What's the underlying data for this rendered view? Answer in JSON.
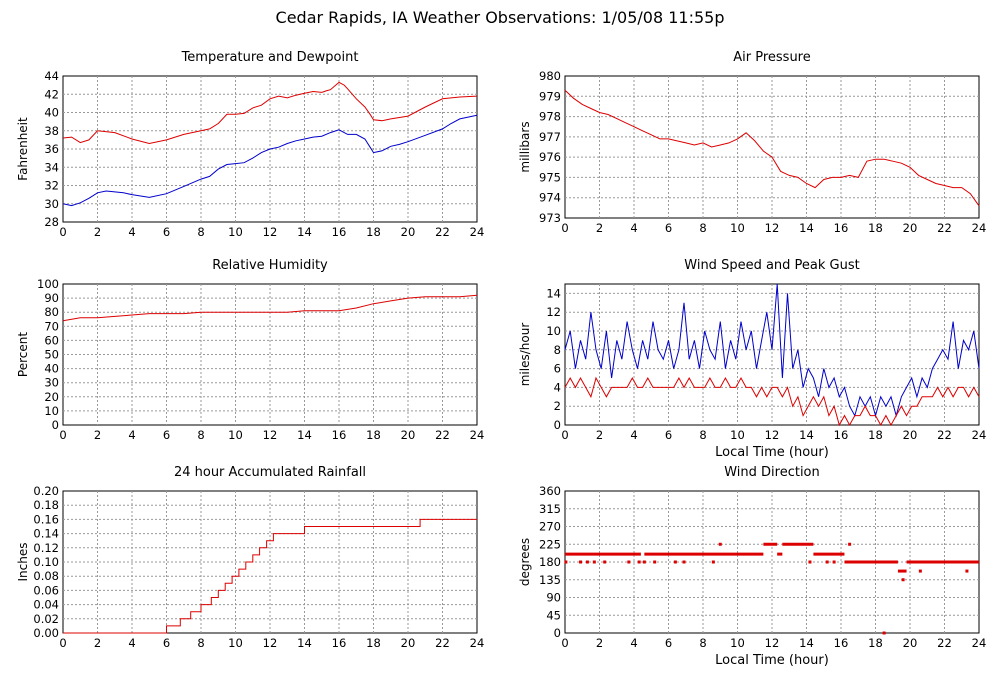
{
  "page": {
    "title": "Cedar Rapids, IA Weather Observations: 1/05/08 11:55p"
  },
  "colors": {
    "red": "#dd0000",
    "blue": "#0000cc",
    "grid": "#999999"
  },
  "chart_data": [
    {
      "id": "temp",
      "type": "line",
      "title": "Temperature and Dewpoint",
      "xlabel": "",
      "ylabel": "Fahrenheit",
      "xlim": [
        0,
        24
      ],
      "ylim": [
        28,
        44
      ],
      "grid": true,
      "xticks": [
        "0",
        "2",
        "4",
        "6",
        "8",
        "10",
        "12",
        "14",
        "16",
        "18",
        "20",
        "22",
        "24"
      ],
      "yticks": [
        "28",
        "30",
        "32",
        "34",
        "36",
        "38",
        "40",
        "42",
        "44"
      ],
      "ytick_values": [
        28,
        30,
        32,
        34,
        36,
        38,
        40,
        42,
        44
      ],
      "series": [
        {
          "color": "red",
          "x": [
            0,
            0.5,
            1,
            1.5,
            2,
            3,
            4,
            5,
            6,
            7,
            8,
            8.5,
            9,
            9.5,
            10,
            10.5,
            11,
            11.5,
            12,
            12.5,
            13,
            13.5,
            14,
            14.5,
            15,
            15.3,
            15.5,
            16,
            16.3,
            16.5,
            17,
            17.5,
            17.8,
            18,
            18.5,
            19,
            20,
            21,
            22,
            23,
            24
          ],
          "y": [
            37.2,
            37.3,
            36.7,
            37.0,
            38.0,
            37.8,
            37.1,
            36.6,
            37.0,
            37.6,
            38.0,
            38.2,
            38.8,
            39.8,
            39.8,
            39.9,
            40.5,
            40.8,
            41.5,
            41.8,
            41.6,
            41.9,
            42.1,
            42.3,
            42.2,
            42.4,
            42.5,
            43.3,
            43.0,
            42.6,
            41.5,
            40.6,
            39.8,
            39.2,
            39.1,
            39.3,
            39.6,
            40.6,
            41.5,
            41.7,
            41.8
          ]
        },
        {
          "color": "blue",
          "x": [
            0,
            0.5,
            1,
            1.5,
            2,
            2.5,
            3,
            3.5,
            4,
            5,
            6,
            7,
            8,
            8.5,
            9,
            9.5,
            10,
            10.5,
            11,
            11.5,
            12,
            12.5,
            13,
            13.5,
            14,
            14.5,
            15,
            15.5,
            16,
            16.5,
            17,
            17.5,
            17.8,
            18,
            18.5,
            19,
            19.5,
            20,
            21,
            22,
            22.5,
            23,
            24
          ],
          "y": [
            30.0,
            29.8,
            30.1,
            30.6,
            31.2,
            31.4,
            31.3,
            31.2,
            31.0,
            30.7,
            31.1,
            31.9,
            32.7,
            33.0,
            33.8,
            34.3,
            34.4,
            34.5,
            35.0,
            35.6,
            36.0,
            36.2,
            36.6,
            36.9,
            37.1,
            37.3,
            37.4,
            37.8,
            38.1,
            37.6,
            37.6,
            37.1,
            36.2,
            35.6,
            35.8,
            36.3,
            36.5,
            36.8,
            37.5,
            38.2,
            38.8,
            39.3,
            39.7
          ]
        }
      ]
    },
    {
      "id": "pressure",
      "type": "line",
      "title": "Air Pressure",
      "xlabel": "",
      "ylabel": "millibars",
      "xlim": [
        0,
        24
      ],
      "ylim": [
        973,
        980
      ],
      "grid": true,
      "xticks": [
        "0",
        "2",
        "4",
        "6",
        "8",
        "10",
        "12",
        "14",
        "16",
        "18",
        "20",
        "22",
        "24"
      ],
      "yticks": [
        "973",
        "974",
        "975",
        "976",
        "977",
        "978",
        "979",
        "980"
      ],
      "ytick_values": [
        973,
        974,
        975,
        976,
        977,
        978,
        979,
        980
      ],
      "series": [
        {
          "color": "red",
          "x": [
            0,
            0.5,
            1,
            1.5,
            2,
            2.5,
            3,
            3.5,
            4,
            4.5,
            5,
            5.5,
            6,
            6.5,
            7,
            7.5,
            8,
            8.5,
            9,
            9.5,
            10,
            10.5,
            11,
            11.5,
            12,
            12.5,
            13,
            13.5,
            14,
            14.5,
            15,
            15.5,
            16,
            16.5,
            17,
            17.5,
            18,
            18.5,
            19,
            19.5,
            20,
            20.5,
            21,
            21.5,
            22,
            22.5,
            23,
            23.5,
            24
          ],
          "y": [
            979.3,
            978.9,
            978.6,
            978.4,
            978.2,
            978.1,
            977.9,
            977.7,
            977.5,
            977.3,
            977.1,
            976.9,
            976.9,
            976.8,
            976.7,
            976.6,
            976.7,
            976.5,
            976.6,
            976.7,
            976.9,
            977.2,
            976.8,
            976.3,
            976.0,
            975.3,
            975.1,
            975.0,
            974.7,
            974.5,
            974.9,
            975.0,
            975.0,
            975.1,
            975.0,
            975.8,
            975.9,
            975.9,
            975.8,
            975.7,
            975.5,
            975.1,
            974.9,
            974.7,
            974.6,
            974.5,
            974.5,
            974.2,
            973.6
          ]
        }
      ]
    },
    {
      "id": "humidity",
      "type": "line",
      "title": "Relative Humidity",
      "xlabel": "",
      "ylabel": "Percent",
      "xlim": [
        0,
        24
      ],
      "ylim": [
        0,
        100
      ],
      "grid": true,
      "xticks": [
        "0",
        "2",
        "4",
        "6",
        "8",
        "10",
        "12",
        "14",
        "16",
        "18",
        "20",
        "22",
        "24"
      ],
      "yticks": [
        "0",
        "10",
        "20",
        "30",
        "40",
        "50",
        "60",
        "70",
        "80",
        "90",
        "100"
      ],
      "ytick_values": [
        0,
        10,
        20,
        30,
        40,
        50,
        60,
        70,
        80,
        90,
        100
      ],
      "series": [
        {
          "color": "red",
          "x": [
            0,
            1,
            2,
            3,
            4,
            5,
            6,
            7,
            8,
            9,
            10,
            11,
            12,
            13,
            14,
            15,
            16,
            17,
            18,
            19,
            20,
            21,
            22,
            23,
            24
          ],
          "y": [
            74,
            76,
            76,
            77,
            78,
            79,
            79,
            79,
            80,
            80,
            80,
            80,
            80,
            80,
            81,
            81,
            81,
            83,
            86,
            88,
            90,
            91,
            91,
            91,
            92
          ]
        }
      ]
    },
    {
      "id": "wind",
      "type": "line",
      "title": "Wind Speed and Peak Gust",
      "xlabel": "Local Time (hour)",
      "ylabel": "miles/hour",
      "xlim": [
        0,
        24
      ],
      "ylim": [
        0,
        15
      ],
      "grid": true,
      "xticks": [
        "0",
        "2",
        "4",
        "6",
        "8",
        "10",
        "12",
        "14",
        "16",
        "18",
        "20",
        "22",
        "24"
      ],
      "yticks": [
        "0",
        "2",
        "4",
        "6",
        "8",
        "10",
        "12",
        "14"
      ],
      "ytick_values": [
        0,
        2,
        4,
        6,
        8,
        10,
        12,
        14
      ],
      "series": [
        {
          "color": "blue",
          "x": [
            0,
            0.3,
            0.6,
            0.9,
            1.2,
            1.5,
            1.8,
            2.1,
            2.4,
            2.7,
            3.0,
            3.3,
            3.6,
            3.9,
            4.2,
            4.5,
            4.8,
            5.1,
            5.4,
            5.7,
            6.0,
            6.3,
            6.6,
            6.9,
            7.2,
            7.5,
            7.8,
            8.1,
            8.4,
            8.7,
            9.0,
            9.3,
            9.6,
            9.9,
            10.2,
            10.5,
            10.8,
            11.1,
            11.4,
            11.7,
            12.0,
            12.3,
            12.6,
            12.9,
            13.2,
            13.5,
            13.8,
            14.1,
            14.4,
            14.7,
            15.0,
            15.3,
            15.6,
            15.9,
            16.2,
            16.5,
            16.8,
            17.1,
            17.4,
            17.7,
            18.0,
            18.3,
            18.6,
            18.9,
            19.2,
            19.5,
            19.8,
            20.1,
            20.4,
            20.7,
            21.0,
            21.3,
            21.6,
            21.9,
            22.2,
            22.5,
            22.8,
            23.1,
            23.4,
            23.7,
            24.0
          ],
          "y": [
            8,
            10,
            6,
            9,
            7,
            12,
            8,
            6,
            10,
            5,
            9,
            7,
            11,
            8,
            6,
            9,
            7,
            11,
            8,
            7,
            9,
            6,
            8,
            13,
            7,
            9,
            6,
            10,
            8,
            7,
            11,
            6,
            9,
            7,
            11,
            8,
            10,
            6,
            9,
            12,
            8,
            15,
            5,
            14,
            6,
            8,
            4,
            6,
            5,
            3,
            6,
            4,
            5,
            3,
            4,
            2,
            1,
            3,
            2,
            3,
            1,
            3,
            2,
            3,
            1,
            3,
            4,
            5,
            3,
            5,
            4,
            6,
            7,
            8,
            7,
            11,
            6,
            9,
            8,
            10,
            6
          ]
        },
        {
          "color": "red",
          "x": [
            0,
            0.3,
            0.6,
            0.9,
            1.2,
            1.5,
            1.8,
            2.1,
            2.4,
            2.7,
            3.0,
            3.3,
            3.6,
            3.9,
            4.2,
            4.5,
            4.8,
            5.1,
            5.4,
            5.7,
            6.0,
            6.3,
            6.6,
            6.9,
            7.2,
            7.5,
            7.8,
            8.1,
            8.4,
            8.7,
            9.0,
            9.3,
            9.6,
            9.9,
            10.2,
            10.5,
            10.8,
            11.1,
            11.4,
            11.7,
            12.0,
            12.3,
            12.6,
            12.9,
            13.2,
            13.5,
            13.8,
            14.1,
            14.4,
            14.7,
            15.0,
            15.3,
            15.6,
            15.9,
            16.2,
            16.5,
            16.8,
            17.1,
            17.4,
            17.7,
            18.0,
            18.3,
            18.6,
            18.9,
            19.2,
            19.5,
            19.8,
            20.1,
            20.4,
            20.7,
            21.0,
            21.3,
            21.6,
            21.9,
            22.2,
            22.5,
            22.8,
            23.1,
            23.4,
            23.7,
            24.0
          ],
          "y": [
            4,
            5,
            4,
            5,
            4,
            3,
            5,
            4,
            3,
            4,
            4,
            4,
            4,
            5,
            4,
            4,
            5,
            4,
            4,
            4,
            4,
            4,
            5,
            4,
            5,
            4,
            4,
            4,
            5,
            4,
            4,
            5,
            4,
            4,
            5,
            4,
            4,
            3,
            4,
            3,
            4,
            4,
            3,
            4,
            2,
            3,
            1,
            2,
            3,
            2,
            3,
            1,
            2,
            0,
            1,
            0,
            1,
            1,
            2,
            1,
            1,
            0,
            1,
            0,
            1,
            2,
            1,
            2,
            2,
            3,
            3,
            3,
            4,
            3,
            4,
            3,
            4,
            4,
            3,
            4,
            3
          ]
        }
      ]
    },
    {
      "id": "rain",
      "type": "line",
      "title": "24 hour Accumulated Rainfall",
      "xlabel": "",
      "ylabel": "Inches",
      "xlim": [
        0,
        24
      ],
      "ylim": [
        0,
        0.2
      ],
      "grid": true,
      "xticks": [
        "0",
        "2",
        "4",
        "6",
        "8",
        "10",
        "12",
        "14",
        "16",
        "18",
        "20",
        "22",
        "24"
      ],
      "yticks": [
        "0.00",
        "0.02",
        "0.04",
        "0.06",
        "0.08",
        "0.10",
        "0.12",
        "0.14",
        "0.16",
        "0.18",
        "0.20"
      ],
      "ytick_values": [
        0,
        0.02,
        0.04,
        0.06,
        0.08,
        0.1,
        0.12,
        0.14,
        0.16,
        0.18,
        0.2
      ],
      "step": true,
      "series": [
        {
          "color": "red",
          "x": [
            0,
            6.0,
            6.8,
            7.4,
            8.0,
            8.6,
            9.0,
            9.4,
            9.8,
            10.2,
            10.6,
            11.0,
            11.4,
            11.8,
            12.2,
            12.8,
            13.4,
            14.0,
            15.0,
            16.0,
            20.7,
            24.0
          ],
          "y": [
            0,
            0.01,
            0.02,
            0.03,
            0.04,
            0.05,
            0.06,
            0.07,
            0.08,
            0.09,
            0.1,
            0.11,
            0.12,
            0.13,
            0.14,
            0.14,
            0.14,
            0.15,
            0.15,
            0.15,
            0.16,
            0.16
          ]
        }
      ]
    },
    {
      "id": "direction",
      "type": "scatter",
      "title": "Wind Direction",
      "xlabel": "Local Time (hour)",
      "ylabel": "degrees",
      "xlim": [
        0,
        24
      ],
      "ylim": [
        0,
        360
      ],
      "grid": true,
      "xticks": [
        "0",
        "2",
        "4",
        "6",
        "8",
        "10",
        "12",
        "14",
        "16",
        "18",
        "20",
        "22",
        "24"
      ],
      "yticks": [
        "0",
        "45",
        "90",
        "135",
        "180",
        "225",
        "270",
        "315",
        "360"
      ],
      "ytick_values": [
        0,
        45,
        90,
        135,
        180,
        225,
        270,
        315,
        360
      ],
      "segments": [
        {
          "x0": 0.0,
          "x1": 4.4,
          "y": 200
        },
        {
          "x0": 4.6,
          "x1": 11.5,
          "y": 200
        },
        {
          "x0": 11.5,
          "x1": 12.3,
          "y": 225
        },
        {
          "x0": 12.3,
          "x1": 12.6,
          "y": 200
        },
        {
          "x0": 12.6,
          "x1": 14.4,
          "y": 225
        },
        {
          "x0": 14.4,
          "x1": 16.2,
          "y": 200
        },
        {
          "x0": 16.2,
          "x1": 19.3,
          "y": 180
        },
        {
          "x0": 19.3,
          "x1": 19.8,
          "y": 157
        },
        {
          "x0": 19.8,
          "x1": 24.0,
          "y": 180
        }
      ],
      "points": [
        {
          "x": 0.05,
          "y": 180
        },
        {
          "x": 0.9,
          "y": 180
        },
        {
          "x": 1.3,
          "y": 180
        },
        {
          "x": 1.7,
          "y": 180
        },
        {
          "x": 2.3,
          "y": 180
        },
        {
          "x": 3.7,
          "y": 180
        },
        {
          "x": 4.3,
          "y": 180
        },
        {
          "x": 4.6,
          "y": 180
        },
        {
          "x": 5.2,
          "y": 180
        },
        {
          "x": 6.4,
          "y": 180
        },
        {
          "x": 6.9,
          "y": 180
        },
        {
          "x": 8.6,
          "y": 180
        },
        {
          "x": 9.0,
          "y": 225
        },
        {
          "x": 14.2,
          "y": 180
        },
        {
          "x": 15.2,
          "y": 180
        },
        {
          "x": 15.6,
          "y": 180
        },
        {
          "x": 16.5,
          "y": 225
        },
        {
          "x": 18.5,
          "y": 0
        },
        {
          "x": 19.6,
          "y": 135
        },
        {
          "x": 20.6,
          "y": 157
        },
        {
          "x": 23.3,
          "y": 157
        }
      ]
    }
  ]
}
